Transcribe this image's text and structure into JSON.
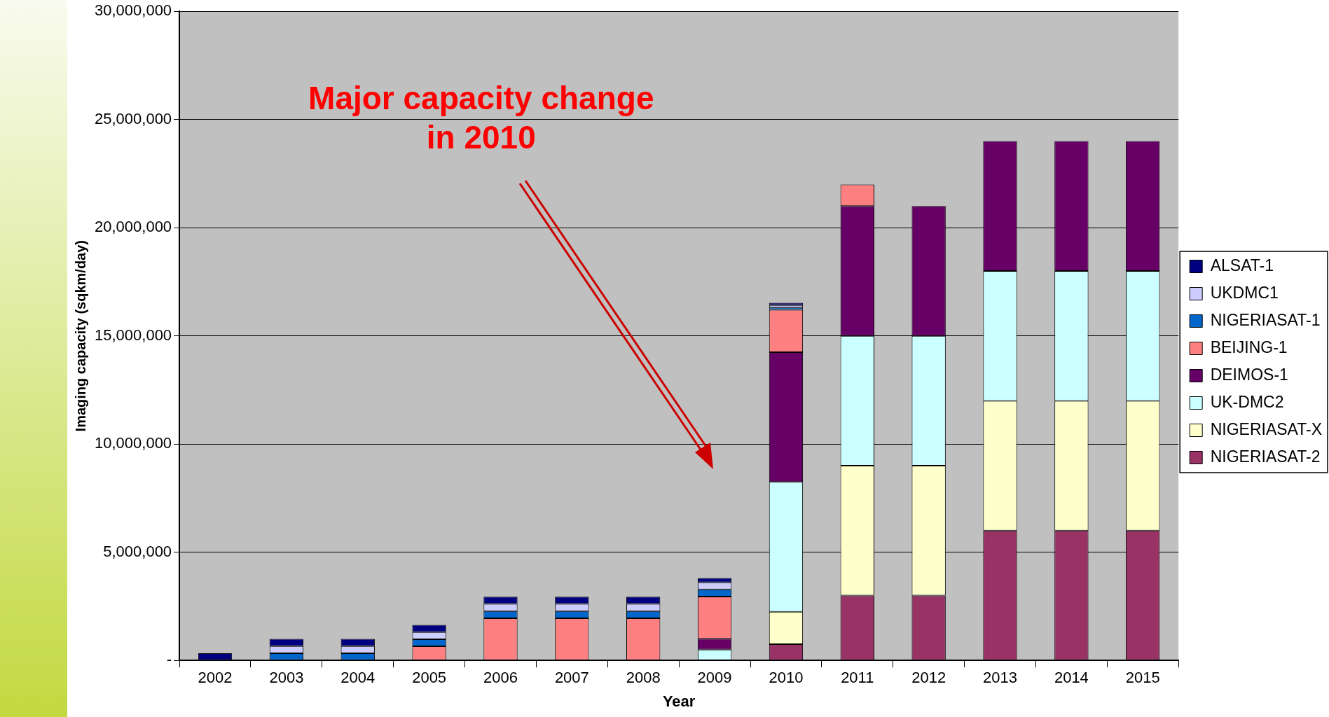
{
  "chart_data": {
    "type": "bar",
    "stacked": true,
    "xlabel": "Year",
    "ylabel": "Imaging capacity (sqkm/day)",
    "categories": [
      "2002",
      "2003",
      "2004",
      "2005",
      "2006",
      "2007",
      "2008",
      "2009",
      "2010",
      "2011",
      "2012",
      "2013",
      "2014",
      "2015"
    ],
    "ylim": [
      0,
      30000000
    ],
    "yticks": [
      {
        "value": 0,
        "label": "-"
      },
      {
        "value": 5000000,
        "label": "5,000,000"
      },
      {
        "value": 10000000,
        "label": "10,000,000"
      },
      {
        "value": 15000000,
        "label": "15,000,000"
      },
      {
        "value": 20000000,
        "label": "20,000,000"
      },
      {
        "value": 25000000,
        "label": "25,000,000"
      },
      {
        "value": 30000000,
        "label": "30,000,000"
      }
    ],
    "grid": "y",
    "legend": "right",
    "annotations": [
      "Major capacity change\nin 2010"
    ],
    "series": [
      {
        "name": "NIGERIASAT-2",
        "color": "#993366",
        "values": [
          0,
          0,
          0,
          0,
          0,
          0,
          0,
          0,
          750000,
          3000000,
          3000000,
          6000000,
          6000000,
          6000000
        ]
      },
      {
        "name": "NIGERIASAT-X",
        "color": "#ffffcc",
        "values": [
          0,
          0,
          0,
          0,
          0,
          0,
          0,
          0,
          1500000,
          6000000,
          6000000,
          6000000,
          6000000,
          6000000
        ]
      },
      {
        "name": "UK-DMC2",
        "color": "#ccffff",
        "values": [
          0,
          0,
          0,
          0,
          0,
          0,
          0,
          500000,
          6000000,
          6000000,
          6000000,
          6000000,
          6000000,
          6000000
        ]
      },
      {
        "name": "DEIMOS-1",
        "color": "#660066",
        "values": [
          0,
          0,
          0,
          0,
          0,
          0,
          0,
          500000,
          6000000,
          6000000,
          6000000,
          6000000,
          6000000,
          6000000
        ]
      },
      {
        "name": "BEIJING-1",
        "color": "#ff8080",
        "values": [
          0,
          0,
          0,
          650000,
          1950000,
          1950000,
          1950000,
          1950000,
          1950000,
          1000000,
          0,
          0,
          0,
          0
        ]
      },
      {
        "name": "NIGERIASAT-1",
        "color": "#0066cc",
        "values": [
          0,
          330000,
          330000,
          330000,
          330000,
          330000,
          330000,
          330000,
          110000,
          0,
          0,
          0,
          0,
          0
        ]
      },
      {
        "name": "UKDMC1",
        "color": "#ccccff",
        "values": [
          0,
          330000,
          330000,
          330000,
          330000,
          330000,
          330000,
          330000,
          110000,
          0,
          0,
          0,
          0,
          0
        ]
      },
      {
        "name": "ALSAT-1",
        "color": "#000080",
        "values": [
          330000,
          330000,
          330000,
          330000,
          330000,
          330000,
          330000,
          200000,
          110000,
          0,
          0,
          0,
          0,
          0
        ]
      }
    ]
  }
}
